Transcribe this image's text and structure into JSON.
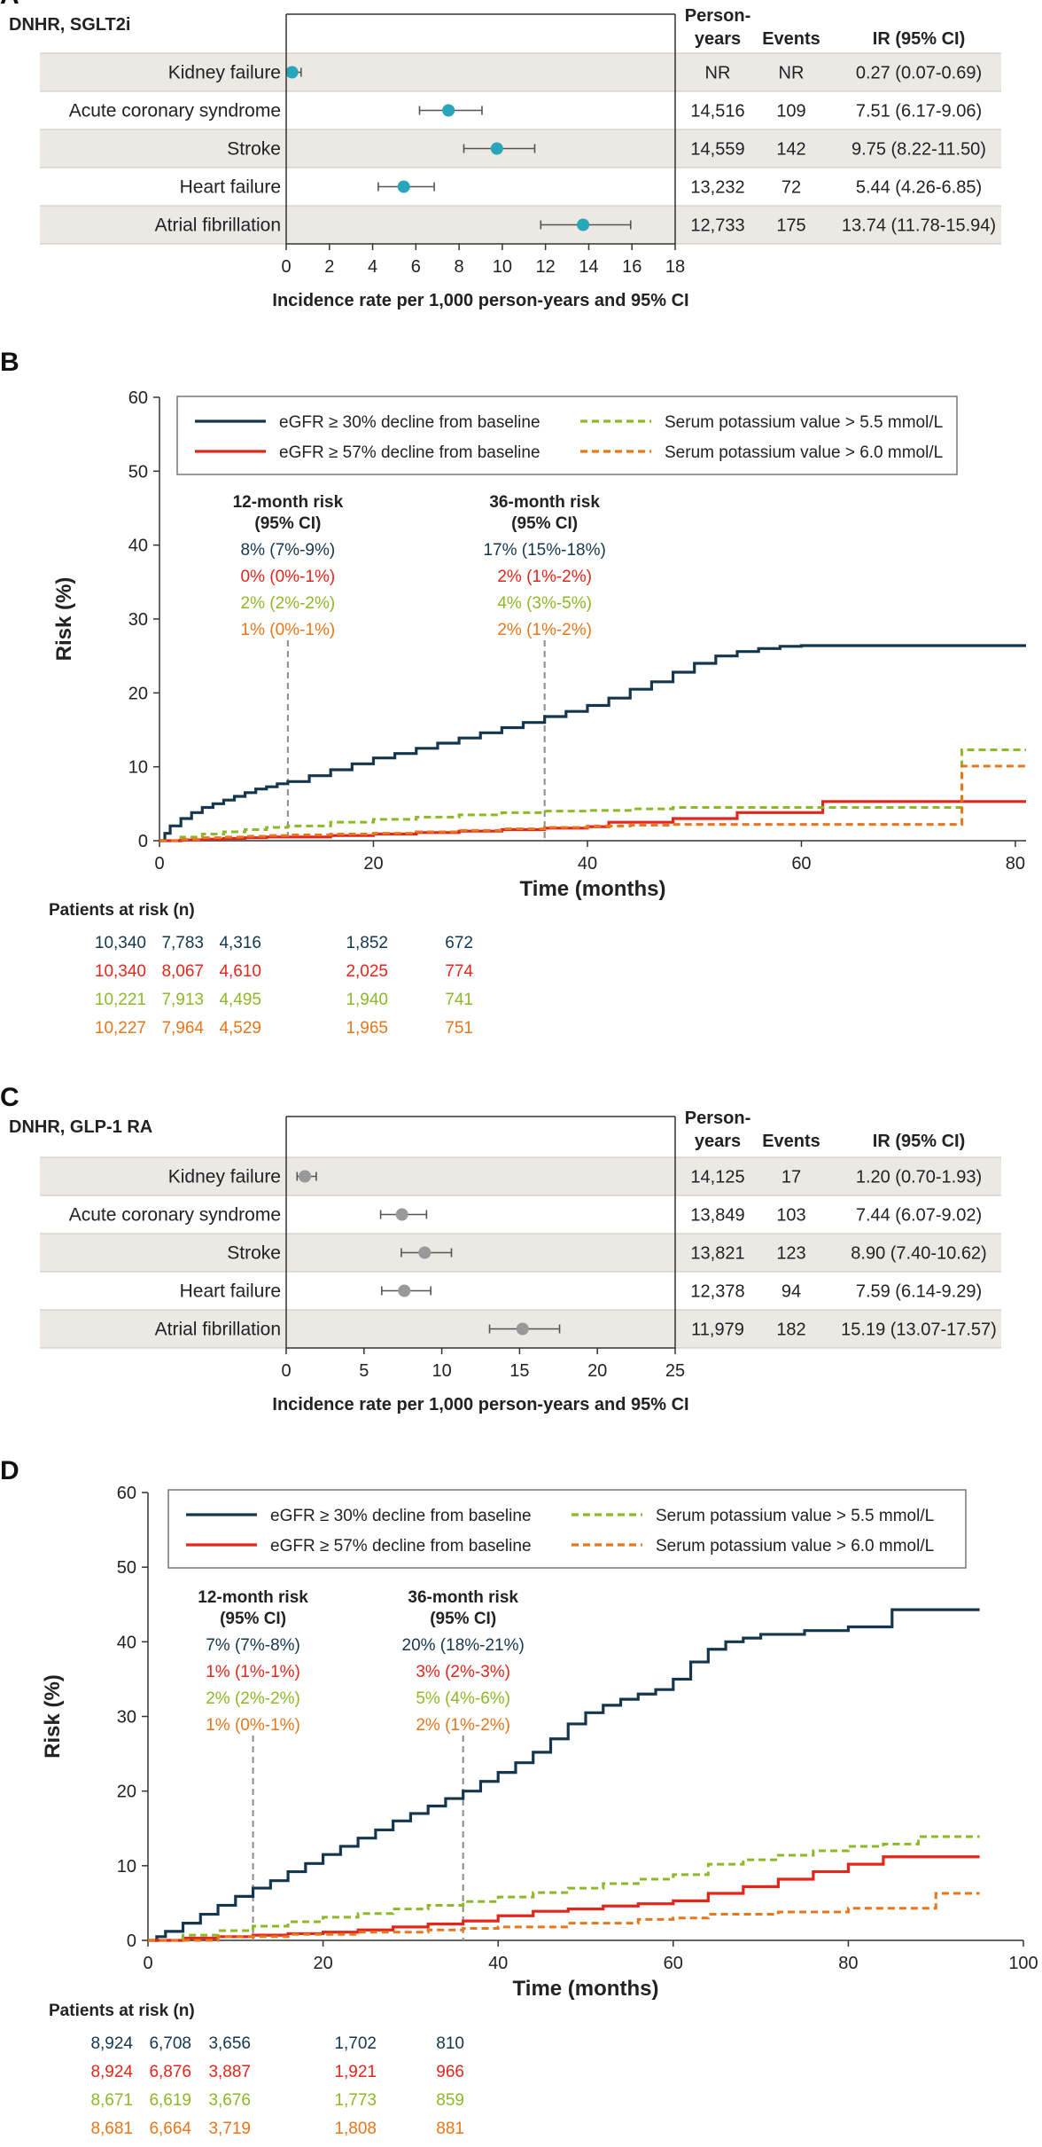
{
  "colors": {
    "navy": "#14374E",
    "red": "#E3261B",
    "green": "#8DB827",
    "orange": "#E8761C",
    "teal": "#26A6B8",
    "gray": "#999999",
    "band": "#ECE8E4",
    "line": "#7F7F7F"
  },
  "chart_data": [
    {
      "type": "forest",
      "panel_label": "A",
      "title": "DNHR, SGLT2i",
      "headers": {
        "py1": "Person-",
        "py2": "years",
        "events": "Events",
        "ir": "IR (95% CI)"
      },
      "xlabel": "Incidence rate per 1,000 person-years and 95% CI",
      "xlim": [
        0,
        18
      ],
      "ticks": [
        0,
        2,
        4,
        6,
        8,
        10,
        12,
        14,
        16,
        18
      ],
      "marker_color": "teal",
      "rows": [
        {
          "label": "Kidney failure",
          "py": "NR",
          "events": "NR",
          "ir_text": "0.27 (0.07-0.69)",
          "est": 0.27,
          "lo": 0.07,
          "hi": 0.69
        },
        {
          "label": "Acute coronary syndrome",
          "py": "14,516",
          "events": "109",
          "ir_text": "7.51 (6.17-9.06)",
          "est": 7.51,
          "lo": 6.17,
          "hi": 9.06
        },
        {
          "label": "Stroke",
          "py": "14,559",
          "events": "142",
          "ir_text": "9.75 (8.22-11.50)",
          "est": 9.75,
          "lo": 8.22,
          "hi": 11.5
        },
        {
          "label": "Heart failure",
          "py": "13,232",
          "events": "72",
          "ir_text": "5.44 (4.26-6.85)",
          "est": 5.44,
          "lo": 4.26,
          "hi": 6.85
        },
        {
          "label": "Atrial fibrillation",
          "py": "12,733",
          "events": "175",
          "ir_text": "13.74 (11.78-15.94)",
          "est": 13.74,
          "lo": 11.78,
          "hi": 15.94
        }
      ]
    },
    {
      "type": "line",
      "panel_label": "B",
      "ylabel": "Risk (%)",
      "xlabel": "Time (months)",
      "xlim": [
        0,
        81
      ],
      "xticks": [
        0,
        20,
        40,
        60,
        80
      ],
      "ylim": [
        0,
        60
      ],
      "yticks": [
        0,
        10,
        20,
        30,
        40,
        50,
        60
      ],
      "legend": [
        "eGFR ≥ 30% decline from baseline",
        "eGFR ≥ 57% decline from baseline",
        "Serum potassium value > 5.5 mmol/L",
        "Serum potassium value > 6.0 mmol/L"
      ],
      "risk_boxes": [
        {
          "month": 12,
          "title1": "12-month risk",
          "title2": "(95% CI)",
          "values": [
            "8% (7%-9%)",
            "0% (0%-1%)",
            "2% (2%-2%)",
            "1% (0%-1%)"
          ]
        },
        {
          "month": 36,
          "title1": "36-month risk",
          "title2": "(95% CI)",
          "values": [
            "17% (15%-18%)",
            "2% (1%-2%)",
            "4% (3%-5%)",
            "2% (1%-2%)"
          ]
        }
      ],
      "at_risk_title": "Patients at risk (n)",
      "at_risk": [
        [
          "10,340",
          "7,783",
          "4,316",
          "1,852",
          "672"
        ],
        [
          "10,340",
          "8,067",
          "4,610",
          "2,025",
          "774"
        ],
        [
          "10,221",
          "7,913",
          "4,495",
          "1,940",
          "741"
        ],
        [
          "10,227",
          "7,964",
          "4,529",
          "1,965",
          "751"
        ]
      ],
      "series": [
        {
          "name": "eGFR ≥ 30% decline from baseline",
          "color": "navy",
          "dash": false,
          "x": [
            0,
            0.5,
            1,
            2,
            3,
            4,
            5,
            6,
            7,
            8,
            9,
            10,
            11,
            12,
            14,
            16,
            18,
            20,
            22,
            24,
            26,
            28,
            30,
            32,
            34,
            36,
            38,
            40,
            42,
            44,
            46,
            48,
            50,
            52,
            54,
            56,
            58,
            60,
            62,
            70,
            81
          ],
          "y": [
            0,
            1,
            2,
            3,
            3.8,
            4.5,
            5,
            5.5,
            6,
            6.5,
            7,
            7.3,
            7.7,
            8,
            8.8,
            9.6,
            10.4,
            11.2,
            11.8,
            12.5,
            13.2,
            13.9,
            14.6,
            15.3,
            16,
            16.8,
            17.5,
            18.3,
            19.3,
            20.5,
            21.5,
            22.8,
            24,
            25,
            25.6,
            26,
            26.3,
            26.4,
            26.4,
            26.4,
            26.4
          ]
        },
        {
          "name": "eGFR ≥ 57% decline from baseline",
          "color": "red",
          "dash": false,
          "x": [
            0,
            2,
            4,
            6,
            8,
            10,
            12,
            16,
            20,
            24,
            28,
            32,
            36,
            40,
            42,
            48,
            54,
            62,
            75,
            81
          ],
          "y": [
            0,
            0.1,
            0.2,
            0.3,
            0.4,
            0.5,
            0.5,
            0.7,
            0.9,
            1.1,
            1.3,
            1.5,
            1.7,
            1.9,
            2.5,
            3,
            3.8,
            5.3,
            5.3,
            5.3
          ]
        },
        {
          "name": "Serum potassium value > 5.5 mmol/L",
          "color": "green",
          "dash": true,
          "x": [
            0,
            2,
            4,
            6,
            8,
            10,
            12,
            16,
            20,
            24,
            28,
            32,
            36,
            40,
            44,
            48,
            55,
            62,
            75,
            81
          ],
          "y": [
            0,
            0.5,
            0.9,
            1.2,
            1.5,
            1.8,
            2,
            2.5,
            2.9,
            3.2,
            3.5,
            3.8,
            4,
            4.1,
            4.3,
            4.5,
            4.5,
            4.5,
            12.3,
            12.3
          ]
        },
        {
          "name": "Serum potassium value > 6.0 mmol/L",
          "color": "orange",
          "dash": true,
          "x": [
            0,
            2,
            4,
            6,
            8,
            10,
            12,
            16,
            20,
            24,
            28,
            32,
            36,
            40,
            44,
            48,
            55,
            62,
            75,
            81
          ],
          "y": [
            0,
            0.2,
            0.4,
            0.5,
            0.6,
            0.7,
            0.8,
            0.9,
            1,
            1.2,
            1.4,
            1.6,
            1.8,
            2,
            2.1,
            2.2,
            2.2,
            2.2,
            10.1,
            10.1
          ]
        }
      ]
    },
    {
      "type": "forest",
      "panel_label": "C",
      "title": "DNHR, GLP-1 RA",
      "headers": {
        "py1": "Person-",
        "py2": "years",
        "events": "Events",
        "ir": "IR (95% CI)"
      },
      "xlabel": "Incidence rate per 1,000 person-years and 95% CI",
      "xlim": [
        0,
        25
      ],
      "ticks": [
        0,
        5,
        10,
        15,
        20,
        25
      ],
      "marker_color": "gray",
      "rows": [
        {
          "label": "Kidney failure",
          "py": "14,125",
          "events": "17",
          "ir_text": "1.20 (0.70-1.93)",
          "est": 1.2,
          "lo": 0.7,
          "hi": 1.93
        },
        {
          "label": "Acute coronary syndrome",
          "py": "13,849",
          "events": "103",
          "ir_text": "7.44 (6.07-9.02)",
          "est": 7.44,
          "lo": 6.07,
          "hi": 9.02
        },
        {
          "label": "Stroke",
          "py": "13,821",
          "events": "123",
          "ir_text": "8.90 (7.40-10.62)",
          "est": 8.9,
          "lo": 7.4,
          "hi": 10.62
        },
        {
          "label": "Heart failure",
          "py": "12,378",
          "events": "94",
          "ir_text": "7.59 (6.14-9.29)",
          "est": 7.59,
          "lo": 6.14,
          "hi": 9.29
        },
        {
          "label": "Atrial fibrillation",
          "py": "11,979",
          "events": "182",
          "ir_text": "15.19 (13.07-17.57)",
          "est": 15.19,
          "lo": 13.07,
          "hi": 17.57
        }
      ]
    },
    {
      "type": "line",
      "panel_label": "D",
      "ylabel": "Risk (%)",
      "xlabel": "Time (months)",
      "xlim": [
        0,
        100
      ],
      "xticks": [
        0,
        20,
        40,
        60,
        80,
        100
      ],
      "ylim": [
        0,
        60
      ],
      "yticks": [
        0,
        10,
        20,
        30,
        40,
        50,
        60
      ],
      "legend": [
        "eGFR ≥ 30% decline from baseline",
        "eGFR ≥ 57% decline from baseline",
        "Serum potassium value > 5.5 mmol/L",
        "Serum potassium value > 6.0 mmol/L"
      ],
      "risk_boxes": [
        {
          "month": 12,
          "title1": "12-month risk",
          "title2": "(95% CI)",
          "values": [
            "7% (7%-8%)",
            "1% (1%-1%)",
            "2% (2%-2%)",
            "1% (0%-1%)"
          ]
        },
        {
          "month": 36,
          "title1": "36-month risk",
          "title2": "(95% CI)",
          "values": [
            "20% (18%-21%)",
            "3% (2%-3%)",
            "5% (4%-6%)",
            "2% (1%-2%)"
          ]
        }
      ],
      "at_risk_title": "Patients at risk (n)",
      "at_risk": [
        [
          "8,924",
          "6,708",
          "3,656",
          "1,702",
          "810"
        ],
        [
          "8,924",
          "6,876",
          "3,887",
          "1,921",
          "966"
        ],
        [
          "8,671",
          "6,619",
          "3,676",
          "1,773",
          "859"
        ],
        [
          "8,681",
          "6,664",
          "3,719",
          "1,808",
          "881"
        ]
      ],
      "series": [
        {
          "name": "eGFR ≥ 30% decline from baseline",
          "color": "navy",
          "dash": false,
          "x": [
            0,
            1,
            2,
            4,
            6,
            8,
            10,
            12,
            14,
            16,
            18,
            20,
            22,
            24,
            26,
            28,
            30,
            32,
            34,
            36,
            38,
            40,
            42,
            44,
            46,
            48,
            50,
            52,
            54,
            56,
            58,
            60,
            62,
            64,
            66,
            68,
            70,
            75,
            80,
            85,
            95
          ],
          "y": [
            0,
            0.5,
            1.2,
            2.3,
            3.5,
            4.7,
            5.9,
            7,
            8,
            9.2,
            10.3,
            11.5,
            12.6,
            13.7,
            14.8,
            16,
            17,
            18,
            19,
            20,
            21.3,
            22.5,
            23.8,
            25.2,
            27,
            29,
            30.5,
            31.5,
            32.3,
            33,
            33.6,
            35,
            37.3,
            39,
            40,
            40.5,
            41,
            41.5,
            42,
            44.3,
            44.3
          ]
        },
        {
          "name": "eGFR ≥ 57% decline from baseline",
          "color": "red",
          "dash": false,
          "x": [
            0,
            4,
            8,
            12,
            16,
            20,
            24,
            28,
            32,
            36,
            40,
            44,
            48,
            52,
            56,
            60,
            64,
            68,
            72,
            76,
            80,
            84,
            88,
            95
          ],
          "y": [
            0,
            0.3,
            0.5,
            0.7,
            0.9,
            1.1,
            1.4,
            1.8,
            2.2,
            2.6,
            3.3,
            3.9,
            4.2,
            4.6,
            4.9,
            5.3,
            6.3,
            7.2,
            8.2,
            9.2,
            10.2,
            11.2,
            11.2,
            11.2
          ]
        },
        {
          "name": "Serum potassium value > 5.5 mmol/L",
          "color": "green",
          "dash": true,
          "x": [
            0,
            4,
            8,
            12,
            16,
            20,
            24,
            28,
            32,
            36,
            40,
            44,
            48,
            52,
            56,
            60,
            64,
            68,
            72,
            76,
            80,
            84,
            88,
            95
          ],
          "y": [
            0,
            0.7,
            1.3,
            1.9,
            2.5,
            3.1,
            3.6,
            4.2,
            4.7,
            5.2,
            5.8,
            6.4,
            7,
            7.6,
            8.2,
            8.8,
            10.2,
            10.8,
            11.4,
            12,
            12.6,
            12.9,
            13.9,
            13.9
          ]
        },
        {
          "name": "Serum potassium value > 6.0 mmol/L",
          "color": "orange",
          "dash": true,
          "x": [
            0,
            8,
            16,
            24,
            32,
            36,
            40,
            48,
            56,
            60,
            64,
            72,
            80,
            86,
            90,
            95
          ],
          "y": [
            0,
            0.5,
            0.8,
            1.1,
            1.4,
            1.6,
            1.8,
            2.3,
            2.8,
            3,
            3.5,
            3.8,
            4.3,
            4.3,
            6.3,
            6.3
          ]
        }
      ]
    }
  ]
}
